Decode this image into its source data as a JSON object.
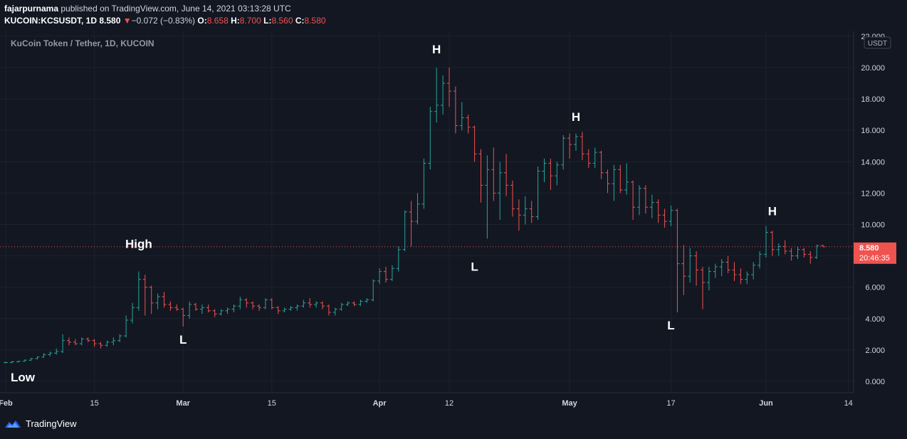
{
  "header": {
    "author": "fajarpurnama",
    "published_text": "published on TradingView.com, June 14, 2021 03:13:28 UTC",
    "symbol": "KUCOIN:KCSUSDT, 1D",
    "last": "8.580",
    "change_arrow": "▼",
    "change": "−0.072 (−0.83%)",
    "o_label": "O:",
    "o": "8.658",
    "h_label": "H:",
    "h": "8.700",
    "l_label": "L:",
    "l": "8.560",
    "c_label": "C:",
    "c": "8.580"
  },
  "chart": {
    "inner_title": "KuCoin Token / Tether, 1D, KUCOIN",
    "currency_badge": "USDT",
    "price_tag": "8.580",
    "countdown": "20:46:35"
  },
  "footer": {
    "brand": "TradingView"
  },
  "colors": {
    "background": "#131722",
    "grid": "#1e222d",
    "up": "#26a69a",
    "down": "#ef5350",
    "text": "#d1d4dc"
  },
  "chart_data": {
    "type": "ohlc",
    "title": "KuCoin Token / Tether, 1D, KUCOIN",
    "ylim": [
      -0.8,
      22.5
    ],
    "y_ticks": [
      "0.000",
      "2.000",
      "4.000",
      "6.000",
      "8.000",
      "10.000",
      "12.000",
      "14.000",
      "16.000",
      "18.000",
      "20.000",
      "22.000"
    ],
    "y_tick_values": [
      0,
      2,
      4,
      6,
      8,
      10,
      12,
      14,
      16,
      18,
      20,
      22
    ],
    "x_ticks": [
      {
        "label": "Feb",
        "date": "2021-02-01"
      },
      {
        "label": "15",
        "date": "2021-02-15"
      },
      {
        "label": "Mar",
        "date": "2021-03-01"
      },
      {
        "label": "15",
        "date": "2021-03-15"
      },
      {
        "label": "Apr",
        "date": "2021-04-01"
      },
      {
        "label": "12",
        "date": "2021-04-12"
      },
      {
        "label": "May",
        "date": "2021-05-01"
      },
      {
        "label": "17",
        "date": "2021-05-17"
      },
      {
        "label": "Jun",
        "date": "2021-06-01"
      },
      {
        "label": "14",
        "date": "2021-06-14"
      }
    ],
    "last_price": 8.58,
    "start_date": "2021-02-01",
    "bars": [
      [
        1.2,
        1.25,
        1.15,
        1.2
      ],
      [
        1.2,
        1.3,
        1.15,
        1.25
      ],
      [
        1.25,
        1.3,
        1.2,
        1.28
      ],
      [
        1.28,
        1.4,
        1.25,
        1.35
      ],
      [
        1.35,
        1.5,
        1.3,
        1.45
      ],
      [
        1.45,
        1.6,
        1.4,
        1.55
      ],
      [
        1.55,
        1.8,
        1.5,
        1.7
      ],
      [
        1.7,
        1.9,
        1.6,
        1.8
      ],
      [
        1.8,
        2.1,
        1.7,
        1.9
      ],
      [
        1.9,
        3.0,
        1.8,
        2.6
      ],
      [
        2.6,
        2.8,
        2.3,
        2.5
      ],
      [
        2.5,
        2.7,
        2.3,
        2.4
      ],
      [
        2.4,
        2.8,
        2.3,
        2.7
      ],
      [
        2.7,
        2.8,
        2.5,
        2.6
      ],
      [
        2.6,
        2.7,
        2.2,
        2.4
      ],
      [
        2.4,
        2.5,
        2.1,
        2.3
      ],
      [
        2.3,
        2.6,
        2.2,
        2.5
      ],
      [
        2.5,
        2.8,
        2.3,
        2.6
      ],
      [
        2.6,
        3.0,
        2.5,
        2.9
      ],
      [
        2.9,
        4.2,
        2.8,
        3.9
      ],
      [
        3.9,
        5.0,
        3.7,
        4.7
      ],
      [
        4.7,
        7.0,
        4.5,
        6.5
      ],
      [
        6.5,
        6.8,
        4.2,
        6.0
      ],
      [
        6.0,
        6.1,
        4.3,
        5.0
      ],
      [
        5.0,
        5.6,
        4.6,
        5.4
      ],
      [
        5.4,
        5.7,
        4.7,
        4.9
      ],
      [
        4.9,
        5.1,
        4.5,
        4.7
      ],
      [
        4.7,
        4.9,
        4.5,
        4.6
      ],
      [
        4.6,
        4.7,
        3.5,
        4.2
      ],
      [
        4.2,
        5.1,
        4.0,
        4.9
      ],
      [
        4.9,
        5.0,
        4.5,
        4.6
      ],
      [
        4.6,
        4.9,
        4.3,
        4.7
      ],
      [
        4.7,
        4.9,
        4.4,
        4.5
      ],
      [
        4.5,
        4.6,
        4.1,
        4.3
      ],
      [
        4.3,
        4.6,
        4.2,
        4.5
      ],
      [
        4.5,
        4.7,
        4.3,
        4.6
      ],
      [
        4.6,
        4.9,
        4.4,
        4.8
      ],
      [
        4.8,
        5.4,
        4.6,
        5.2
      ],
      [
        5.2,
        5.3,
        4.7,
        5.0
      ],
      [
        5.0,
        5.1,
        4.6,
        4.8
      ],
      [
        4.8,
        4.9,
        4.5,
        4.7
      ],
      [
        4.7,
        5.3,
        4.6,
        5.2
      ],
      [
        5.2,
        5.3,
        4.6,
        4.7
      ],
      [
        4.7,
        4.8,
        4.3,
        4.5
      ],
      [
        4.5,
        4.7,
        4.4,
        4.6
      ],
      [
        4.6,
        4.8,
        4.5,
        4.7
      ],
      [
        4.7,
        4.9,
        4.5,
        4.8
      ],
      [
        4.8,
        5.2,
        4.7,
        5.0
      ],
      [
        5.0,
        5.3,
        4.7,
        4.9
      ],
      [
        4.9,
        5.1,
        4.7,
        5.0
      ],
      [
        5.0,
        5.1,
        4.6,
        4.8
      ],
      [
        4.8,
        4.9,
        4.2,
        4.4
      ],
      [
        4.4,
        4.7,
        4.2,
        4.6
      ],
      [
        4.6,
        5.0,
        4.5,
        4.9
      ],
      [
        4.9,
        5.1,
        4.8,
        5.0
      ],
      [
        5.0,
        5.1,
        4.8,
        4.9
      ],
      [
        4.9,
        5.2,
        4.8,
        5.1
      ],
      [
        5.1,
        5.3,
        5.0,
        5.2
      ],
      [
        5.2,
        6.5,
        5.1,
        6.4
      ],
      [
        6.4,
        7.2,
        6.2,
        7.0
      ],
      [
        7.0,
        7.3,
        6.3,
        6.5
      ],
      [
        6.5,
        7.4,
        6.4,
        7.2
      ],
      [
        7.2,
        8.6,
        7.0,
        8.4
      ],
      [
        8.4,
        10.9,
        8.3,
        10.8
      ],
      [
        10.8,
        11.5,
        8.6,
        10.2
      ],
      [
        10.2,
        12.0,
        10.0,
        11.3
      ],
      [
        11.3,
        14.2,
        11.0,
        13.9
      ],
      [
        13.9,
        17.5,
        13.5,
        17.2
      ],
      [
        17.2,
        20.0,
        16.5,
        17.6
      ],
      [
        17.6,
        19.5,
        17.0,
        19.0
      ],
      [
        19.0,
        20.0,
        17.5,
        18.5
      ],
      [
        18.5,
        18.8,
        15.8,
        16.3
      ],
      [
        16.3,
        17.8,
        16.0,
        16.8
      ],
      [
        16.8,
        17.0,
        15.8,
        16.2
      ],
      [
        16.2,
        16.3,
        14.0,
        14.5
      ],
      [
        14.5,
        14.8,
        11.4,
        12.5
      ],
      [
        12.5,
        14.4,
        9.1,
        13.5
      ],
      [
        13.5,
        14.9,
        11.5,
        12.0
      ],
      [
        12.0,
        14.0,
        10.3,
        13.3
      ],
      [
        13.3,
        14.5,
        11.8,
        12.5
      ],
      [
        12.5,
        12.8,
        10.5,
        11.0
      ],
      [
        11.0,
        11.6,
        9.6,
        10.6
      ],
      [
        10.6,
        11.8,
        10.0,
        11.0
      ],
      [
        11.0,
        11.5,
        10.1,
        10.5
      ],
      [
        10.5,
        13.7,
        10.3,
        13.4
      ],
      [
        13.4,
        14.2,
        12.7,
        13.9
      ],
      [
        13.9,
        14.2,
        12.2,
        13.1
      ],
      [
        13.1,
        14.0,
        12.5,
        13.8
      ],
      [
        13.8,
        15.7,
        13.5,
        15.5
      ],
      [
        15.5,
        15.8,
        14.2,
        15.1
      ],
      [
        15.1,
        15.8,
        14.7,
        15.6
      ],
      [
        15.6,
        15.9,
        14.1,
        14.5
      ],
      [
        14.5,
        14.8,
        13.6,
        13.9
      ],
      [
        13.9,
        14.9,
        13.6,
        14.6
      ],
      [
        14.6,
        14.7,
        12.9,
        13.3
      ],
      [
        13.3,
        13.5,
        12.0,
        12.6
      ],
      [
        12.6,
        13.8,
        11.5,
        13.5
      ],
      [
        13.5,
        13.8,
        12.0,
        12.2
      ],
      [
        12.2,
        13.9,
        11.9,
        12.7
      ],
      [
        12.7,
        12.8,
        10.3,
        11.1
      ],
      [
        11.1,
        12.5,
        10.6,
        12.3
      ],
      [
        12.3,
        12.5,
        10.7,
        11.1
      ],
      [
        11.1,
        11.9,
        10.4,
        11.4
      ],
      [
        11.4,
        11.6,
        10.1,
        10.6
      ],
      [
        10.6,
        11.0,
        9.8,
        10.2
      ],
      [
        10.2,
        11.2,
        9.9,
        10.9
      ],
      [
        10.9,
        11.0,
        4.4,
        7.5
      ],
      [
        7.5,
        8.7,
        5.5,
        6.7
      ],
      [
        6.7,
        8.5,
        6.3,
        8.0
      ],
      [
        8.0,
        8.3,
        6.1,
        7.1
      ],
      [
        7.1,
        7.3,
        4.6,
        6.3
      ],
      [
        6.3,
        7.3,
        5.8,
        7.0
      ],
      [
        7.0,
        7.5,
        6.6,
        7.3
      ],
      [
        7.3,
        7.8,
        6.7,
        7.6
      ],
      [
        7.6,
        8.0,
        6.9,
        7.1
      ],
      [
        7.1,
        7.6,
        6.4,
        6.8
      ],
      [
        6.8,
        7.2,
        6.2,
        6.5
      ],
      [
        6.5,
        7.0,
        6.2,
        6.8
      ],
      [
        6.8,
        7.6,
        6.5,
        7.4
      ],
      [
        7.4,
        8.3,
        7.2,
        8.1
      ],
      [
        8.1,
        9.9,
        7.9,
        9.5
      ],
      [
        9.5,
        9.6,
        8.0,
        8.4
      ],
      [
        8.4,
        8.8,
        8.0,
        8.6
      ],
      [
        8.6,
        9.0,
        8.1,
        8.3
      ],
      [
        8.3,
        8.5,
        7.7,
        8.0
      ],
      [
        8.0,
        8.6,
        7.8,
        8.4
      ],
      [
        8.4,
        8.5,
        7.9,
        8.1
      ],
      [
        8.1,
        8.3,
        7.5,
        7.9
      ],
      [
        7.9,
        8.7,
        7.8,
        8.658
      ],
      [
        8.658,
        8.7,
        8.56,
        8.58
      ]
    ],
    "annotations": [
      {
        "text": "Low",
        "date": "2021-02-02",
        "price": 0.0
      },
      {
        "text": "High",
        "date": "2021-02-22",
        "price": 8.5
      },
      {
        "text": "L",
        "date": "2021-03-01",
        "price": 2.4
      },
      {
        "text": "H",
        "date": "2021-04-10",
        "price": 20.9
      },
      {
        "text": "L",
        "date": "2021-04-16",
        "price": 7.05
      },
      {
        "text": "H",
        "date": "2021-05-02",
        "price": 16.6
      },
      {
        "text": "L",
        "date": "2021-05-17",
        "price": 3.3
      },
      {
        "text": "H",
        "date": "2021-06-02",
        "price": 10.6
      }
    ]
  }
}
